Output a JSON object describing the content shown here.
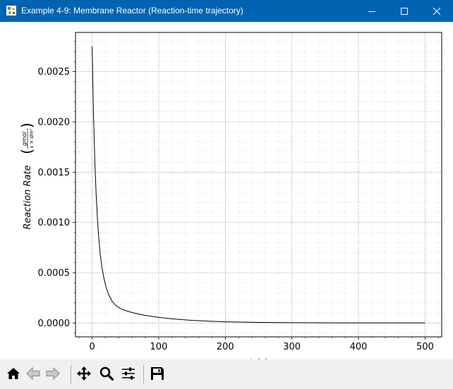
{
  "window": {
    "title": "Example 4-9: Membrane Reactor (Reaction-time trajectory)",
    "controls": [
      "minimize",
      "maximize",
      "close"
    ]
  },
  "toolbar": {
    "buttons": [
      {
        "name": "home-icon",
        "tooltip": "Home"
      },
      {
        "name": "back-icon",
        "tooltip": "Back"
      },
      {
        "name": "forward-icon",
        "tooltip": "Forward"
      },
      {
        "name": "pan-icon",
        "tooltip": "Pan"
      },
      {
        "name": "zoom-icon",
        "tooltip": "Zoom"
      },
      {
        "name": "configure-subplots-icon",
        "tooltip": "Configure subplots"
      },
      {
        "name": "save-icon",
        "tooltip": "Save"
      }
    ]
  },
  "chart_data": {
    "type": "line",
    "title": "",
    "xlabel": "t (s)",
    "ylabel": "Reaction Rate (gmol / (s × dm³))",
    "ylabel_main": "Reaction Rate",
    "ylabel_unit_num": "gmol",
    "ylabel_unit_den": "s × dm³",
    "xlim": [
      -25,
      525
    ],
    "ylim": [
      -0.000138,
      0.00289
    ],
    "xticks": [
      0,
      100,
      200,
      300,
      400,
      500
    ],
    "xtick_labels": [
      "0",
      "100",
      "200",
      "300",
      "400",
      "500"
    ],
    "yticks": [
      0.0,
      0.0005,
      0.001,
      0.0015,
      0.002,
      0.0025
    ],
    "ytick_labels": [
      "0.0000",
      "0.0005",
      "0.0010",
      "0.0015",
      "0.0020",
      "0.0025"
    ],
    "grid": true,
    "minor_grid": true,
    "line_color": "#000000",
    "series": [
      {
        "x": [
          0,
          2,
          4,
          6,
          8,
          10,
          12,
          15,
          18,
          21,
          25,
          30,
          35,
          40,
          45,
          50,
          60,
          70,
          80,
          100,
          125,
          150,
          175,
          200,
          250,
          300,
          350,
          400,
          450,
          500
        ],
        "values": [
          0.00275,
          0.00208,
          0.00161,
          0.00128,
          0.00103,
          0.00084,
          0.00069,
          0.00054,
          0.000435,
          0.000355,
          0.000279,
          0.000216,
          0.000178,
          0.000153,
          0.000136,
          0.000124,
          0.000104,
          8.9e-05,
          7.6e-05,
          5.6e-05,
          3.8e-05,
          2.6e-05,
          1.8e-05,
          1.2e-05,
          6e-06,
          3e-06,
          1.5e-06,
          8e-07,
          4e-07,
          2e-07
        ]
      }
    ]
  }
}
